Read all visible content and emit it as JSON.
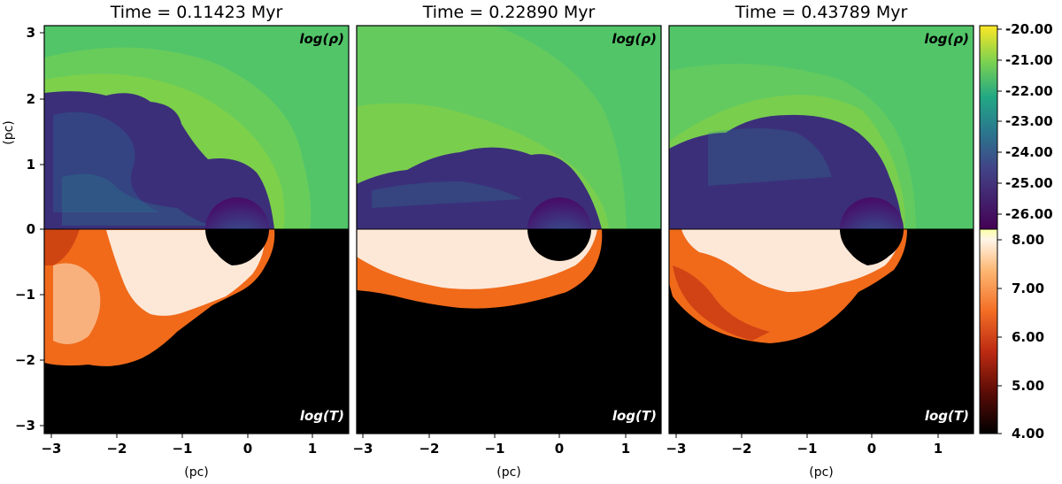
{
  "figure": {
    "panels": [
      {
        "title": "Time = 0.11423 Myr",
        "top_label": "log(ρ)",
        "bottom_label": "log(T)"
      },
      {
        "title": "Time = 0.22890 Myr",
        "top_label": "log(ρ)",
        "bottom_label": "log(T)"
      },
      {
        "title": "Time = 0.43789 Myr",
        "top_label": "log(ρ)",
        "bottom_label": "log(T)"
      }
    ],
    "x_label": "(pc)",
    "y_label": "(pc)",
    "x_ticks": [
      "−3",
      "−2",
      "−1",
      "0",
      "1"
    ],
    "y_ticks": [
      "3",
      "2",
      "1",
      "0",
      "−1",
      "−2",
      "−3"
    ],
    "colorbar_density": {
      "ticks": [
        "-20.00",
        "-21.00",
        "-22.00",
        "-23.00",
        "-24.00",
        "-25.00",
        "-26.00"
      ]
    },
    "colorbar_temperature": {
      "ticks": [
        "8.00",
        "7.00",
        "6.00",
        "5.00",
        "4.00"
      ]
    },
    "colors": {
      "ambient_density": "#4fbf6a",
      "shell_density": "#8cd240",
      "bubble_density": "#3b2f7a",
      "hot_gas": "#fde8d8",
      "warm_gas": "#f06a1a",
      "cold_background": "#000000"
    }
  }
}
